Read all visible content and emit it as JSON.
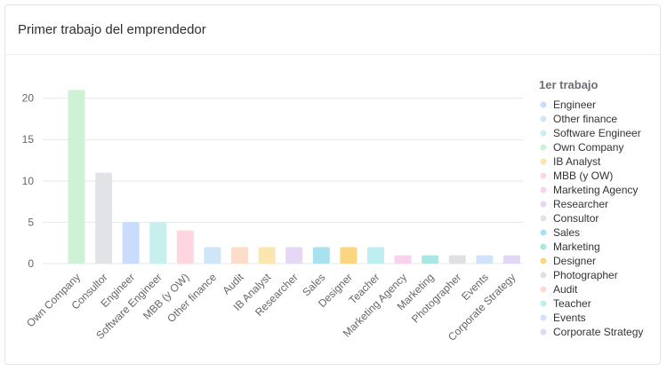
{
  "card": {
    "title": "Primer trabajo del emprendedor"
  },
  "chart_data": {
    "type": "bar",
    "title": "Primer trabajo del emprendedor",
    "xlabel": "",
    "ylabel": "",
    "ylim": [
      0,
      22
    ],
    "yticks": [
      0,
      5,
      10,
      15,
      20
    ],
    "grid": true,
    "legend_title": "1er trabajo",
    "legend_position": "right",
    "categories": [
      "Own Company",
      "Consultor",
      "Engineer",
      "Software Engineer",
      "MBB (y OW)",
      "Other finance",
      "Audit",
      "IB Analyst",
      "Researcher",
      "Sales",
      "Designer",
      "Teacher",
      "Marketing Agency",
      "Marketing",
      "Photographer",
      "Events",
      "Corporate Strategy"
    ],
    "values": [
      21,
      11,
      5,
      5,
      4,
      2,
      2,
      2,
      2,
      2,
      2,
      2,
      1,
      1,
      1,
      1,
      1
    ],
    "colors": {
      "Engineer": "#c9dcfb",
      "Other finance": "#cfe6f9",
      "Software Engineer": "#c6efee",
      "Own Company": "#cdf2d6",
      "IB Analyst": "#fbe6b0",
      "MBB (y OW)": "#fdd6df",
      "Marketing Agency": "#f7d3ee",
      "Researcher": "#e6d7f5",
      "Consultor": "#e2e3e6",
      "Sales": "#a8e2f0",
      "Marketing": "#a9e6e4",
      "Designer": "#fbd680",
      "Photographer": "#dfe0e3",
      "Audit": "#fcdccb",
      "Teacher": "#bfeef0",
      "Events": "#d3e2fb",
      "Corporate Strategy": "#e2d8f6"
    },
    "legend": [
      "Engineer",
      "Other finance",
      "Software Engineer",
      "Own Company",
      "IB Analyst",
      "MBB (y OW)",
      "Marketing Agency",
      "Researcher",
      "Consultor",
      "Sales",
      "Marketing",
      "Designer",
      "Photographer",
      "Audit",
      "Teacher",
      "Events",
      "Corporate Strategy"
    ]
  }
}
